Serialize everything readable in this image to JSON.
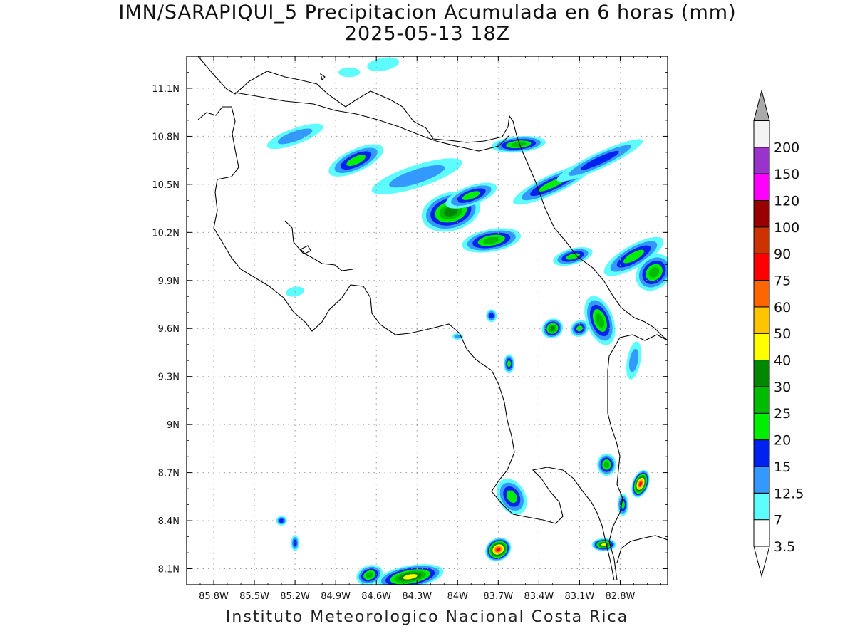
{
  "title": "IMN/SARAPIQUI_5 Precipitacion Acumulada en 6 horas (mm)",
  "subtitle": "2025-05-13 18Z",
  "credit": "Instituto Meteorologico Nacional Costa Rica",
  "map": {
    "lon_range": [
      -86.0,
      -82.45
    ],
    "lat_range": [
      8.0,
      11.3
    ],
    "lon_ticks": [
      {
        "value": -85.8,
        "label": "85.8W"
      },
      {
        "value": -85.5,
        "label": "85.5W"
      },
      {
        "value": -85.2,
        "label": "85.2W"
      },
      {
        "value": -84.9,
        "label": "84.9W"
      },
      {
        "value": -84.6,
        "label": "84.6W"
      },
      {
        "value": -84.3,
        "label": "84.3W"
      },
      {
        "value": -84.0,
        "label": "84W"
      },
      {
        "value": -83.7,
        "label": "83.7W"
      },
      {
        "value": -83.4,
        "label": "83.4W"
      },
      {
        "value": -83.1,
        "label": "83.1W"
      },
      {
        "value": -82.8,
        "label": "82.8W"
      }
    ],
    "lat_ticks": [
      {
        "value": 8.1,
        "label": "8.1N"
      },
      {
        "value": 8.4,
        "label": "8.4N"
      },
      {
        "value": 8.7,
        "label": "8.7N"
      },
      {
        "value": 9.0,
        "label": "9N"
      },
      {
        "value": 9.3,
        "label": "9.3N"
      },
      {
        "value": 9.6,
        "label": "9.6N"
      },
      {
        "value": 9.9,
        "label": "9.9N"
      },
      {
        "value": 10.2,
        "label": "10.2N"
      },
      {
        "value": 10.5,
        "label": "10.5N"
      },
      {
        "value": 10.8,
        "label": "10.8N"
      },
      {
        "value": 11.1,
        "label": "11.1N"
      }
    ],
    "gridlines": true,
    "levels": [
      {
        "label": "3.5",
        "color": "#5dfdfd"
      },
      {
        "label": "7",
        "color": "#3399ff"
      },
      {
        "label": "12.5",
        "color": "#0022ee"
      },
      {
        "label": "15",
        "color": "#00ee00"
      },
      {
        "label": "20",
        "color": "#00bb00"
      },
      {
        "label": "25",
        "color": "#008800"
      },
      {
        "label": "30",
        "color": "#ffff00"
      },
      {
        "label": "40",
        "color": "#ffc400"
      },
      {
        "label": "50",
        "color": "#ff6600"
      },
      {
        "label": "60",
        "color": "#ff0000"
      },
      {
        "label": "75",
        "color": "#cc3300"
      },
      {
        "label": "90",
        "color": "#990000"
      },
      {
        "label": "100",
        "color": "#ff00ff"
      },
      {
        "label": "120",
        "color": "#9933cc"
      },
      {
        "label": "150",
        "color": "#f4f4f4"
      },
      {
        "label": "200",
        "color": "#aaaaaa"
      }
    ],
    "colorbar_below_min": "#ffffff",
    "colorbar_above_max": "#aaaaaa",
    "rain_cells": [
      {
        "lon": -84.05,
        "lat": 10.33,
        "rx": 0.22,
        "ry": 0.12,
        "rot": -15,
        "peak": 6
      },
      {
        "lon": -83.9,
        "lat": 10.43,
        "rx": 0.2,
        "ry": 0.06,
        "rot": -20,
        "peak": 4
      },
      {
        "lon": -83.75,
        "lat": 10.15,
        "rx": 0.22,
        "ry": 0.07,
        "rot": -10,
        "peak": 5
      },
      {
        "lon": -84.3,
        "lat": 10.55,
        "rx": 0.35,
        "ry": 0.07,
        "rot": -18,
        "peak": 2
      },
      {
        "lon": -84.75,
        "lat": 10.65,
        "rx": 0.22,
        "ry": 0.07,
        "rot": -25,
        "peak": 4
      },
      {
        "lon": -85.2,
        "lat": 10.8,
        "rx": 0.22,
        "ry": 0.05,
        "rot": -20,
        "peak": 2
      },
      {
        "lon": -83.55,
        "lat": 10.75,
        "rx": 0.2,
        "ry": 0.05,
        "rot": -5,
        "peak": 5
      },
      {
        "lon": -83.3,
        "lat": 10.5,
        "rx": 0.32,
        "ry": 0.06,
        "rot": -25,
        "peak": 4
      },
      {
        "lon": -82.95,
        "lat": 10.65,
        "rx": 0.35,
        "ry": 0.05,
        "rot": -25,
        "peak": 3
      },
      {
        "lon": -83.15,
        "lat": 10.05,
        "rx": 0.15,
        "ry": 0.05,
        "rot": -15,
        "peak": 4
      },
      {
        "lon": -82.7,
        "lat": 10.05,
        "rx": 0.25,
        "ry": 0.07,
        "rot": -30,
        "peak": 4
      },
      {
        "lon": -82.55,
        "lat": 9.95,
        "rx": 0.15,
        "ry": 0.1,
        "rot": -45,
        "peak": 5
      },
      {
        "lon": -82.95,
        "lat": 9.65,
        "rx": 0.1,
        "ry": 0.16,
        "rot": -20,
        "peak": 5
      },
      {
        "lon": -83.3,
        "lat": 9.6,
        "rx": 0.08,
        "ry": 0.06,
        "rot": -30,
        "peak": 6
      },
      {
        "lon": -83.1,
        "lat": 9.6,
        "rx": 0.07,
        "ry": 0.05,
        "rot": -30,
        "peak": 4
      },
      {
        "lon": -83.62,
        "lat": 9.38,
        "rx": 0.04,
        "ry": 0.06,
        "rot": 0,
        "peak": 4
      },
      {
        "lon": -82.7,
        "lat": 9.4,
        "rx": 0.05,
        "ry": 0.12,
        "rot": 10,
        "peak": 2
      },
      {
        "lon": -83.6,
        "lat": 8.55,
        "rx": 0.1,
        "ry": 0.12,
        "rot": -30,
        "peak": 4
      },
      {
        "lon": -83.7,
        "lat": 8.22,
        "rx": 0.1,
        "ry": 0.07,
        "rot": -30,
        "peak": 10
      },
      {
        "lon": -84.35,
        "lat": 8.05,
        "rx": 0.25,
        "ry": 0.07,
        "rot": -10,
        "peak": 7
      },
      {
        "lon": -84.65,
        "lat": 8.06,
        "rx": 0.1,
        "ry": 0.06,
        "rot": -20,
        "peak": 5
      },
      {
        "lon": -82.65,
        "lat": 8.63,
        "rx": 0.06,
        "ry": 0.09,
        "rot": 20,
        "peak": 10
      },
      {
        "lon": -82.92,
        "lat": 8.25,
        "rx": 0.09,
        "ry": 0.04,
        "rot": 0,
        "peak": 7
      },
      {
        "lon": -82.9,
        "lat": 8.75,
        "rx": 0.07,
        "ry": 0.07,
        "rot": 0,
        "peak": 5
      },
      {
        "lon": -82.78,
        "lat": 8.5,
        "rx": 0.04,
        "ry": 0.07,
        "rot": 0,
        "peak": 4
      },
      {
        "lon": -85.3,
        "lat": 8.4,
        "rx": 0.04,
        "ry": 0.03,
        "rot": 0,
        "peak": 3
      },
      {
        "lon": -85.2,
        "lat": 8.26,
        "rx": 0.03,
        "ry": 0.05,
        "rot": 0,
        "peak": 3
      },
      {
        "lon": -84.0,
        "lat": 9.55,
        "rx": 0.04,
        "ry": 0.02,
        "rot": 0,
        "peak": 2
      },
      {
        "lon": -83.75,
        "lat": 9.68,
        "rx": 0.04,
        "ry": 0.04,
        "rot": 0,
        "peak": 3
      },
      {
        "lon": -85.2,
        "lat": 9.83,
        "rx": 0.07,
        "ry": 0.03,
        "rot": -10,
        "peak": 1
      },
      {
        "lon": -84.55,
        "lat": 11.25,
        "rx": 0.12,
        "ry": 0.04,
        "rot": -10,
        "peak": 1
      },
      {
        "lon": -84.8,
        "lat": 11.2,
        "rx": 0.08,
        "ry": 0.03,
        "rot": 0,
        "peak": 1
      }
    ]
  }
}
